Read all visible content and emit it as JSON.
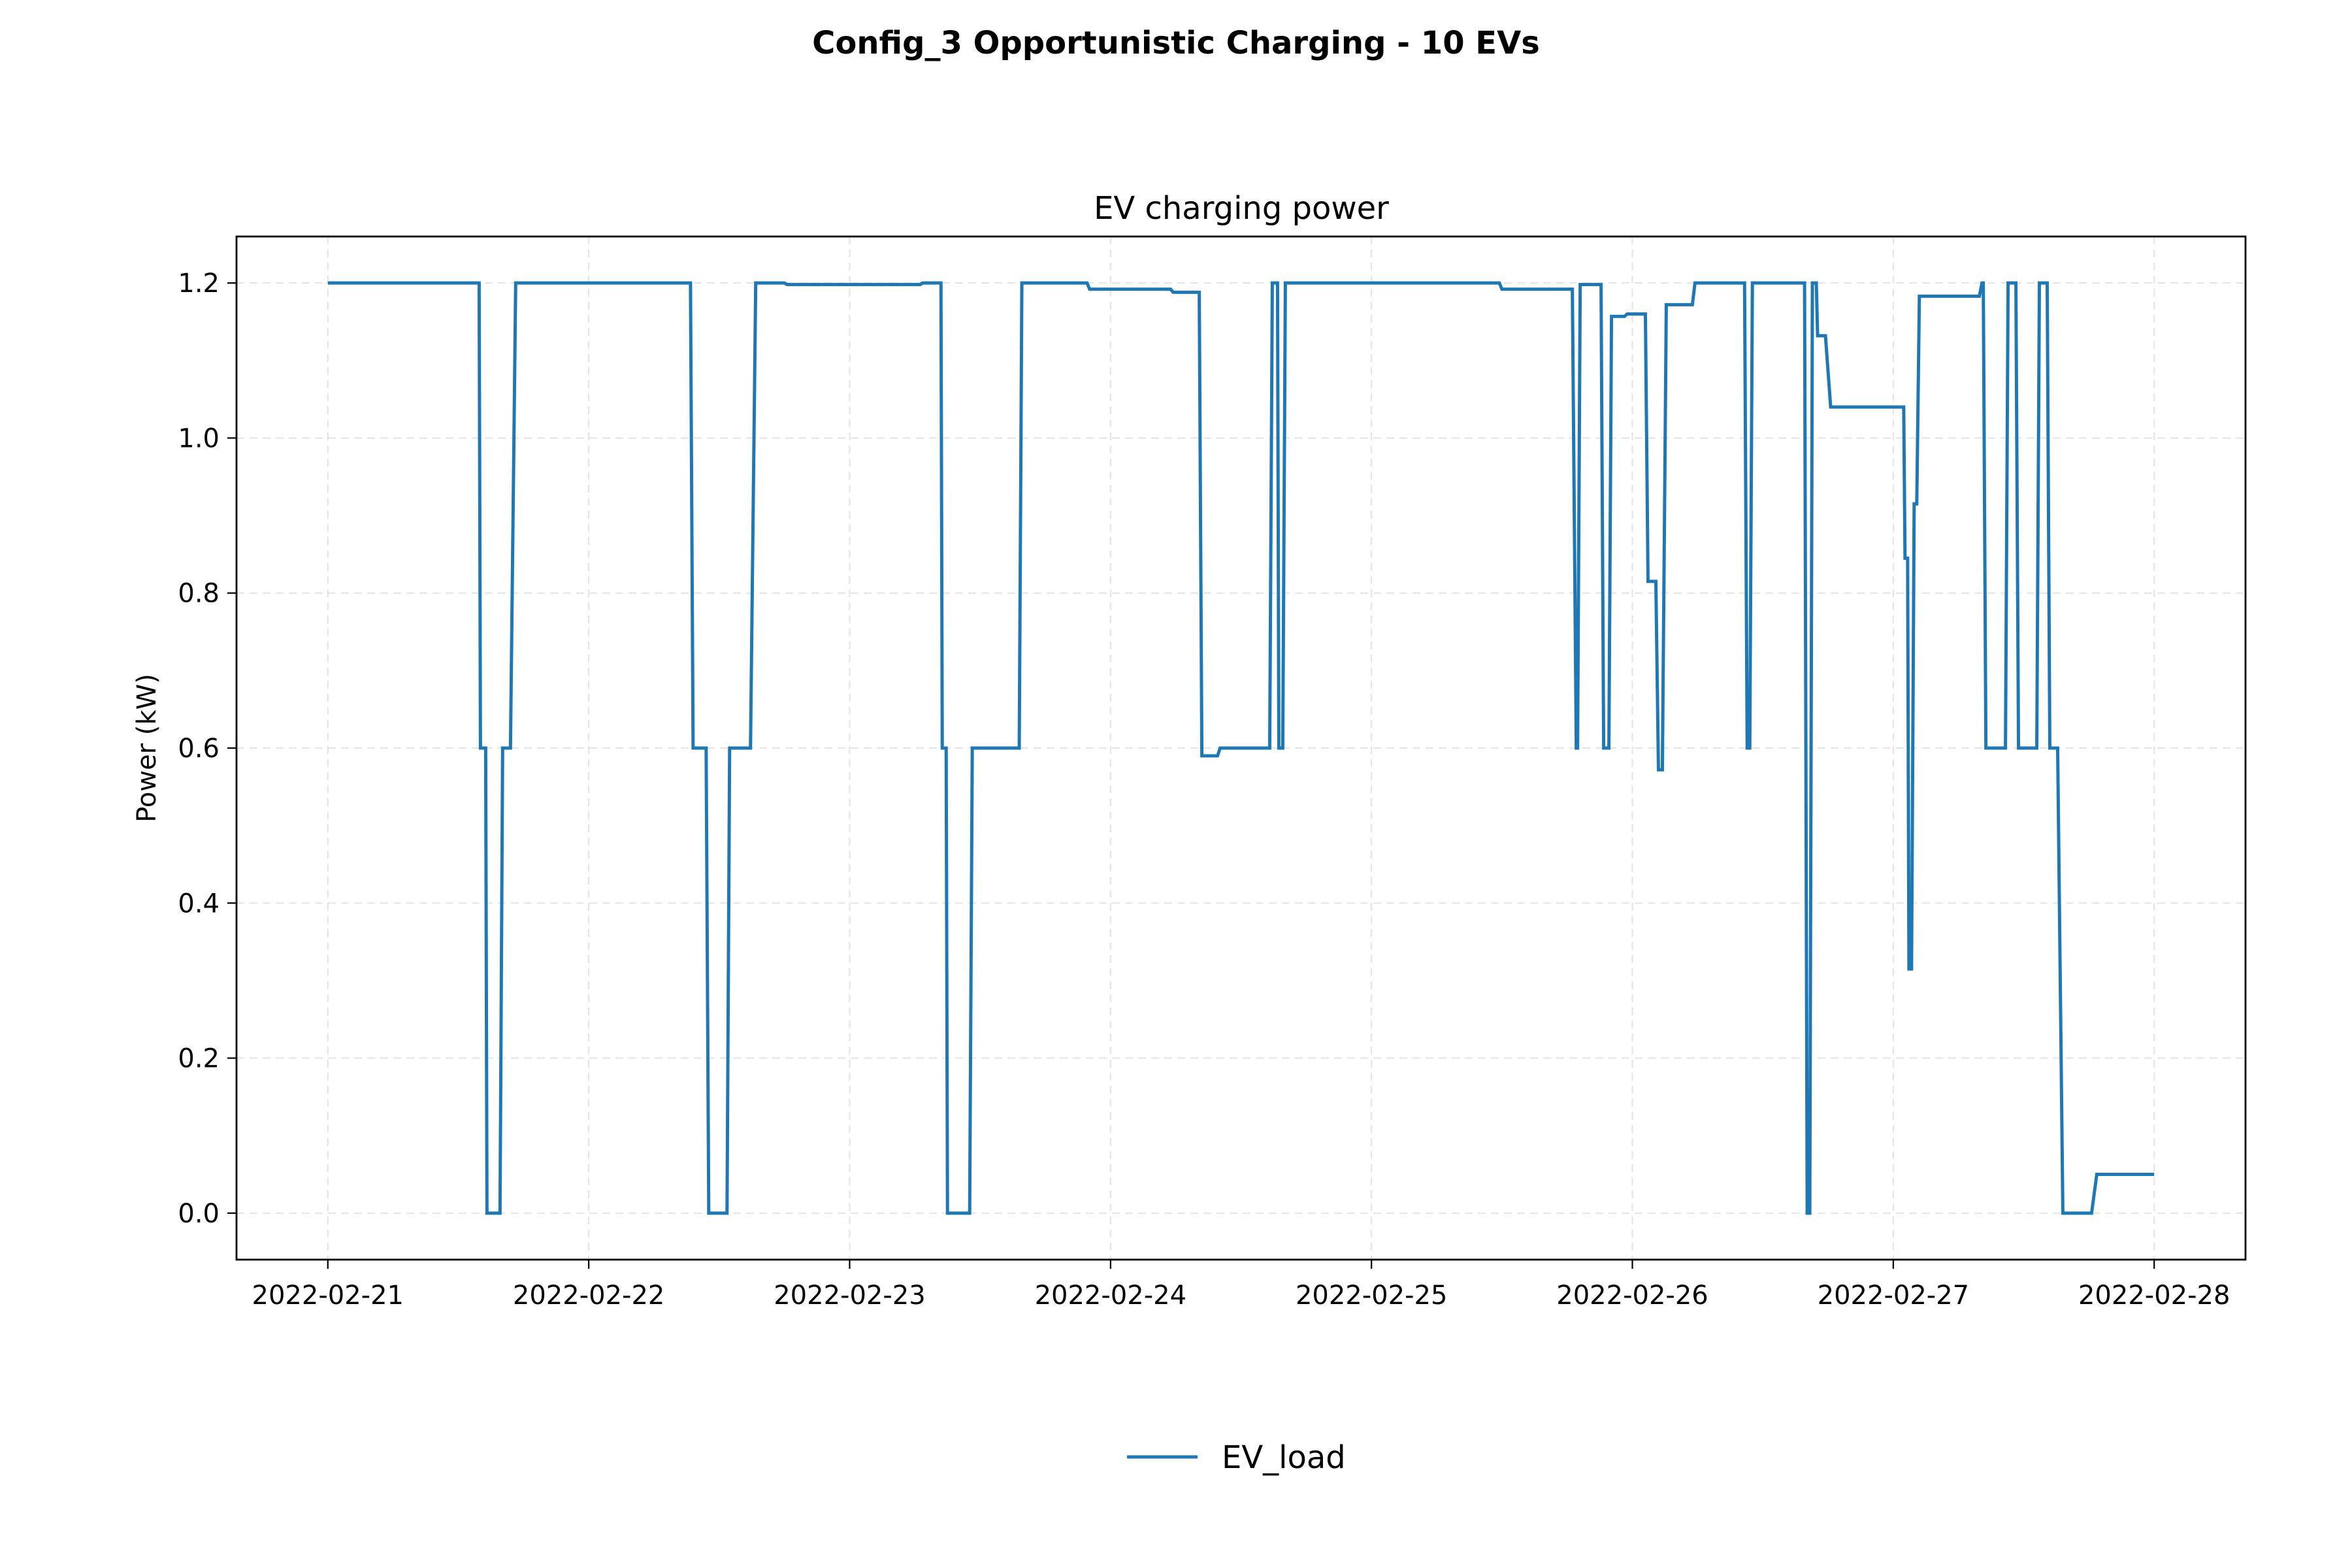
{
  "chart_data": {
    "type": "line",
    "suptitle": "Config_3 Opportunistic Charging - 10 EVs",
    "title": "EV charging power",
    "xlabel": "",
    "ylabel": "Power (kW)",
    "xlim": [
      -0.35,
      7.35
    ],
    "ylim": [
      -0.06,
      1.26
    ],
    "grid": true,
    "legend_position": "bottom-center",
    "x_ticks": [
      0,
      1,
      2,
      3,
      4,
      5,
      6,
      7
    ],
    "x_tick_labels": [
      "2022-02-21",
      "2022-02-22",
      "2022-02-23",
      "2022-02-24",
      "2022-02-25",
      "2022-02-26",
      "2022-02-27",
      "2022-02-28"
    ],
    "y_ticks": [
      0.0,
      0.2,
      0.4,
      0.6,
      0.8,
      1.0,
      1.2
    ],
    "y_tick_labels": [
      "0.0",
      "0.2",
      "0.4",
      "0.6",
      "0.8",
      "1.0",
      "1.2"
    ],
    "x_unit": "days since 2022-02-21",
    "series": [
      {
        "name": "EV_load",
        "color": "#1f77b4",
        "x": [
          0.0,
          0.58,
          0.585,
          0.605,
          0.61,
          0.66,
          0.67,
          0.7,
          0.72,
          1.39,
          1.4,
          1.45,
          1.46,
          1.53,
          1.54,
          1.62,
          1.64,
          1.75,
          1.76,
          2.27,
          2.28,
          2.35,
          2.355,
          2.37,
          2.375,
          2.46,
          2.47,
          2.65,
          2.66,
          2.91,
          2.92,
          3.23,
          3.24,
          3.34,
          3.35,
          3.41,
          3.42,
          3.61,
          3.62,
          3.64,
          3.645,
          3.66,
          3.67,
          4.49,
          4.5,
          4.77,
          4.785,
          4.79,
          4.8,
          4.88,
          4.89,
          4.91,
          4.92,
          4.97,
          4.98,
          5.05,
          5.06,
          5.09,
          5.1,
          5.115,
          5.13,
          5.23,
          5.24,
          5.43,
          5.44,
          5.45,
          5.46,
          5.66,
          5.67,
          5.68,
          5.69,
          5.705,
          5.71,
          5.74,
          5.76,
          6.04,
          6.045,
          6.055,
          6.06,
          6.07,
          6.08,
          6.09,
          6.1,
          6.33,
          6.34,
          6.345,
          6.355,
          6.43,
          6.44,
          6.47,
          6.48,
          6.55,
          6.56,
          6.59,
          6.6,
          6.63,
          6.65,
          6.76,
          6.78,
          6.88,
          7.0
        ],
        "y": [
          1.2,
          1.2,
          0.6,
          0.6,
          0.0,
          0.0,
          0.6,
          0.6,
          1.2,
          1.2,
          0.6,
          0.6,
          0.0,
          0.0,
          0.6,
          0.6,
          1.2,
          1.2,
          1.198,
          1.198,
          1.2,
          1.2,
          0.6,
          0.6,
          0.0,
          0.0,
          0.6,
          0.6,
          1.2,
          1.2,
          1.192,
          1.192,
          1.188,
          1.188,
          0.59,
          0.59,
          0.6,
          0.6,
          1.2,
          1.2,
          0.6,
          0.6,
          1.2,
          1.2,
          1.192,
          1.192,
          0.6,
          0.6,
          1.198,
          1.198,
          0.6,
          0.6,
          1.157,
          1.157,
          1.16,
          1.16,
          0.815,
          0.815,
          0.572,
          0.572,
          1.172,
          1.172,
          1.2,
          1.2,
          0.6,
          0.6,
          1.2,
          1.2,
          0.0,
          0.0,
          1.2,
          1.2,
          1.132,
          1.132,
          1.04,
          1.04,
          0.845,
          0.845,
          0.315,
          0.315,
          0.915,
          0.915,
          1.183,
          1.183,
          1.2,
          1.2,
          0.6,
          0.6,
          1.2,
          1.2,
          0.6,
          0.6,
          1.2,
          1.2,
          0.6,
          0.6,
          0.0,
          0.0,
          0.05,
          0.05,
          0.05
        ]
      }
    ]
  }
}
